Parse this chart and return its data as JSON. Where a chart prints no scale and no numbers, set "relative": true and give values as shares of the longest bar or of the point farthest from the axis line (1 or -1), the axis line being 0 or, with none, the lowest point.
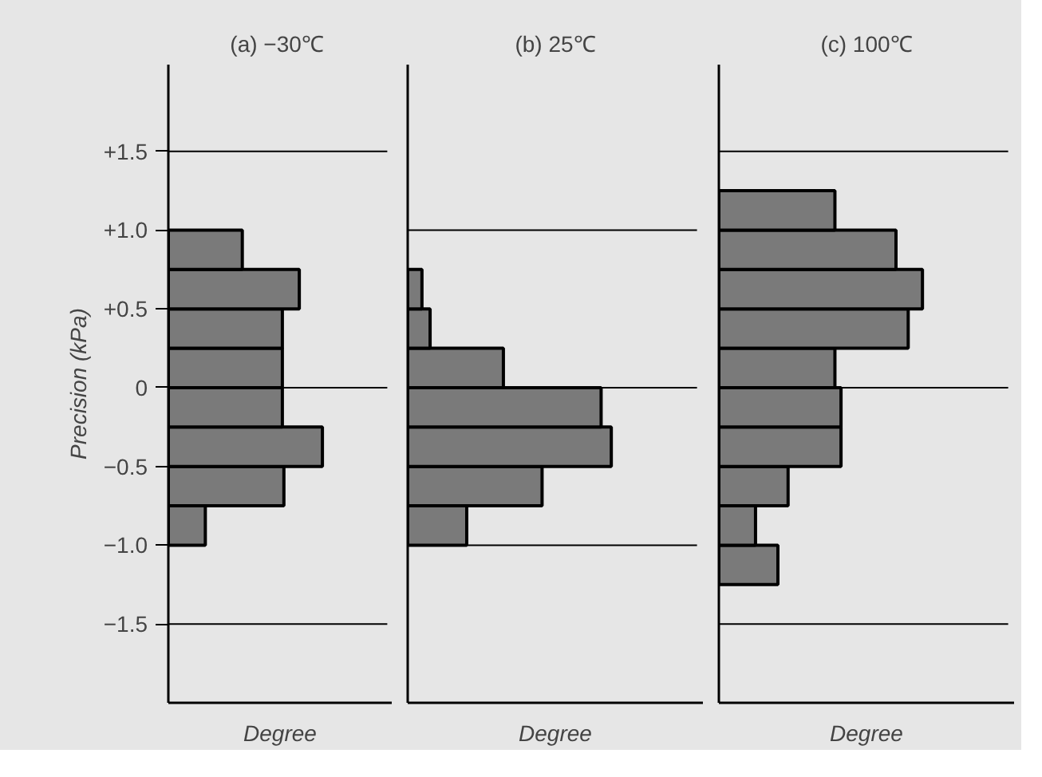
{
  "chart_data": [
    {
      "type": "bar",
      "orientation": "horizontal",
      "relative": true,
      "title": "(a)  −30℃",
      "xlabel": "Degree",
      "ylabel": "Precision (kPa)",
      "color": "#7a7a7a",
      "x": [
        -0.875,
        -0.625,
        -0.375,
        -0.125,
        0.125,
        0.375,
        0.625,
        0.875
      ],
      "values": [
        0.24,
        0.75,
        1,
        0.74,
        0.74,
        0.74,
        0.85,
        0.48
      ],
      "ylim": [
        -2.0,
        2.05
      ],
      "yticks": [
        {
          "value": -1.5,
          "label": "−1.5"
        },
        {
          "value": -1.0,
          "label": "−1.0"
        },
        {
          "value": -0.5,
          "label": "−0.5"
        },
        {
          "value": 0,
          "label": "0"
        },
        {
          "value": 0.5,
          "label": "+0.5"
        },
        {
          "value": 1.0,
          "label": "+1.0"
        },
        {
          "value": 1.5,
          "label": "+1.5"
        }
      ],
      "tick_labels": "y",
      "ref_lines": [
        {
          "axis": "y",
          "value": 0,
          "line_style": "solid"
        },
        {
          "axis": "y",
          "value": 1.5,
          "line_style": "solid"
        },
        {
          "axis": "y",
          "value": -1.5,
          "line_style": "solid"
        }
      ]
    },
    {
      "type": "bar",
      "orientation": "horizontal",
      "relative": true,
      "title": "(b) 25℃",
      "xlabel": "Degree",
      "color": "#7a7a7a",
      "x": [
        -0.875,
        -0.625,
        -0.375,
        -0.125,
        0.125,
        0.375,
        0.625
      ],
      "values": [
        0.29,
        0.66,
        1,
        0.95,
        0.47,
        0.11,
        0.07
      ],
      "ylim": [
        -2.0,
        2.05
      ],
      "tick_labels": false,
      "ref_lines": [
        {
          "axis": "y",
          "value": 0,
          "line_style": "solid"
        },
        {
          "axis": "y",
          "value": 1.0,
          "line_style": "solid"
        },
        {
          "axis": "y",
          "value": -1.0,
          "line_style": "solid"
        }
      ]
    },
    {
      "type": "bar",
      "orientation": "horizontal",
      "relative": true,
      "title": "(c) 100℃",
      "xlabel": "Degree",
      "color": "#7a7a7a",
      "x": [
        -1.125,
        -0.875,
        -0.625,
        -0.375,
        -0.125,
        0.125,
        0.375,
        0.625,
        0.875,
        1.125
      ],
      "values": [
        0.29,
        0.18,
        0.34,
        0.6,
        0.6,
        0.57,
        0.93,
        1,
        0.87,
        0.57
      ],
      "ylim": [
        -2.0,
        2.05
      ],
      "tick_labels": false,
      "ref_lines": [
        {
          "axis": "y",
          "value": 0,
          "line_style": "solid"
        },
        {
          "axis": "y",
          "value": 1.5,
          "line_style": "solid"
        },
        {
          "axis": "y",
          "value": -1.5,
          "line_style": "solid"
        }
      ]
    }
  ]
}
